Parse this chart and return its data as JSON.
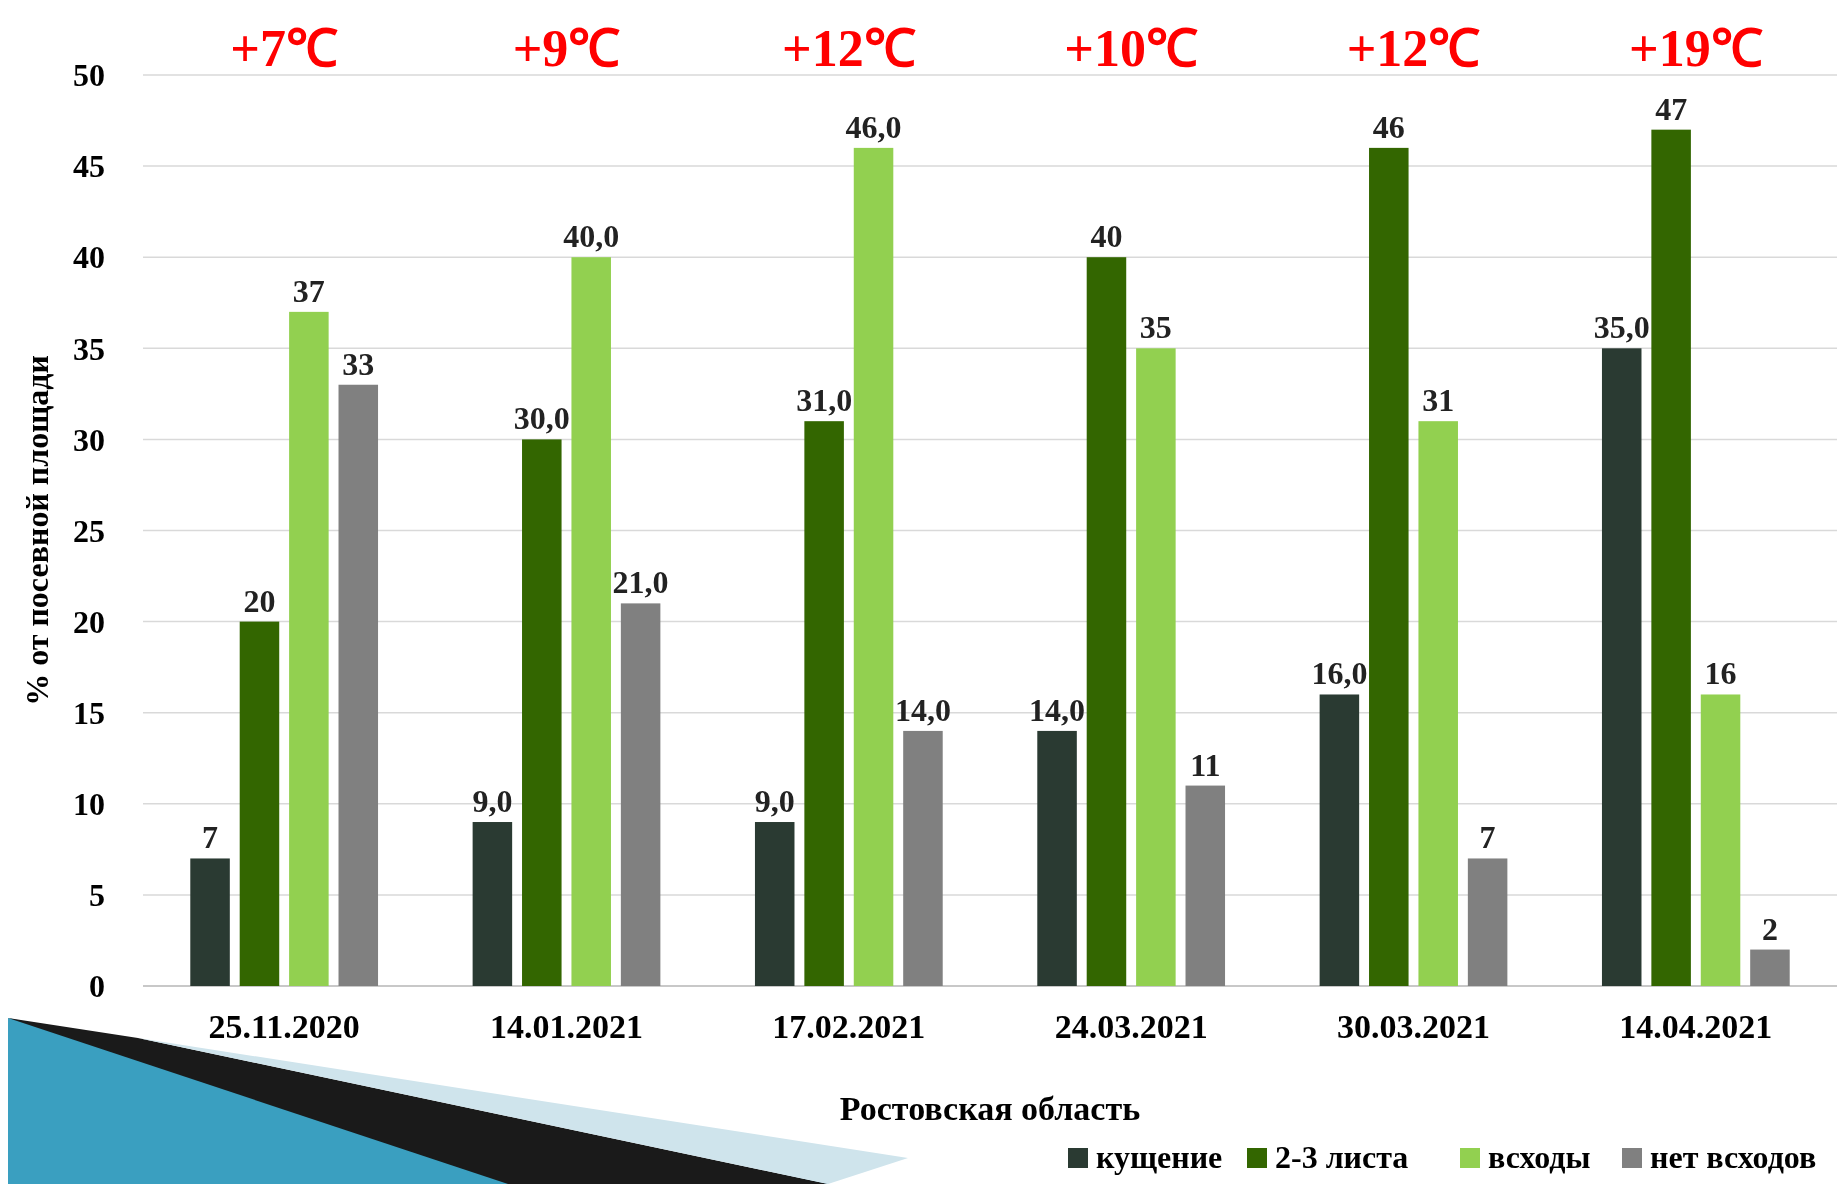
{
  "chart_data": {
    "type": "bar",
    "xlabel": "Ростовская область",
    "ylabel": "% от посевной площади",
    "categories": [
      "25.11.2020",
      "14.01.2021",
      "17.02.2021",
      "24.03.2021",
      "30.03.2021",
      "14.04.2021"
    ],
    "series": [
      {
        "name": "кущение",
        "color": "#2a3a32",
        "values": [
          7,
          9,
          9,
          14,
          16,
          35
        ],
        "value_labels": [
          "7",
          "9,0",
          "9,0",
          "14,0",
          "16,0",
          "35,0"
        ]
      },
      {
        "name": "2-3 листа",
        "color": "#336600",
        "values": [
          20,
          30,
          31,
          40,
          46,
          47
        ],
        "value_labels": [
          "20",
          "30,0",
          "31,0",
          "40",
          "46",
          "47"
        ]
      },
      {
        "name": "всходы",
        "color": "#92d050",
        "values": [
          37,
          40,
          46,
          35,
          31,
          16
        ],
        "value_labels": [
          "37",
          "40,0",
          "46,0",
          "35",
          "31",
          "16"
        ]
      },
      {
        "name": "нет всходов",
        "color": "#808080",
        "values": [
          33,
          21,
          14,
          11,
          7,
          2
        ],
        "value_labels": [
          "33",
          "21,0",
          "14,0",
          "11",
          "7",
          "2"
        ]
      }
    ],
    "ylim": [
      0,
      50
    ],
    "yticks": [
      0,
      5,
      10,
      15,
      20,
      25,
      30,
      35,
      40,
      45,
      50
    ],
    "grid": "y",
    "legend": "bottom right",
    "annotations": [
      "+7℃",
      "+9℃",
      "+12℃",
      "+10℃",
      "+12℃",
      "+19℃"
    ]
  }
}
